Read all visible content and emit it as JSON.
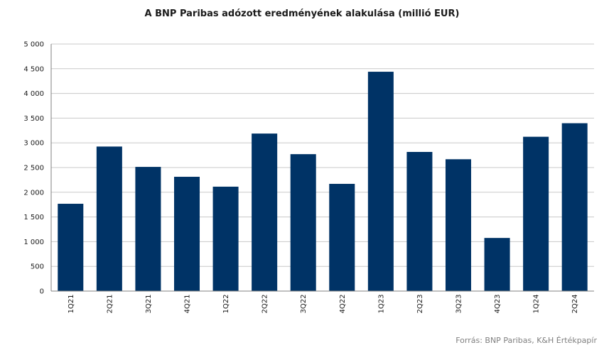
{
  "chart_data": {
    "type": "bar",
    "title": "A BNP Paribas adózott eredményének alakulása (millió EUR)",
    "categories": [
      "1Q21",
      "2Q21",
      "3Q21",
      "4Q21",
      "1Q22",
      "2Q22",
      "3Q22",
      "4Q22",
      "1Q23",
      "2Q23",
      "3Q23",
      "4Q23",
      "1Q24",
      "2Q24"
    ],
    "values": [
      1767,
      2925,
      2513,
      2313,
      2113,
      3188,
      2771,
      2170,
      4439,
      2816,
      2668,
      1075,
      3123,
      3397
    ],
    "xlabel": "",
    "ylabel": "",
    "ylim": [
      0,
      5000
    ],
    "yticks": [
      0,
      500,
      1000,
      1500,
      2000,
      2500,
      3000,
      3500,
      4000,
      4500,
      5000
    ],
    "ytick_labels": [
      "0",
      "500",
      "1 000",
      "1 500",
      "2 000",
      "2 500",
      "3 000",
      "3 500",
      "4 000",
      "4 500",
      "5 000"
    ],
    "grid": true,
    "legend": false,
    "bar_color": "#003366",
    "grid_color": "#c8c8c8",
    "source": "Forrás: BNP Paribas, K&H Értékpapír"
  }
}
